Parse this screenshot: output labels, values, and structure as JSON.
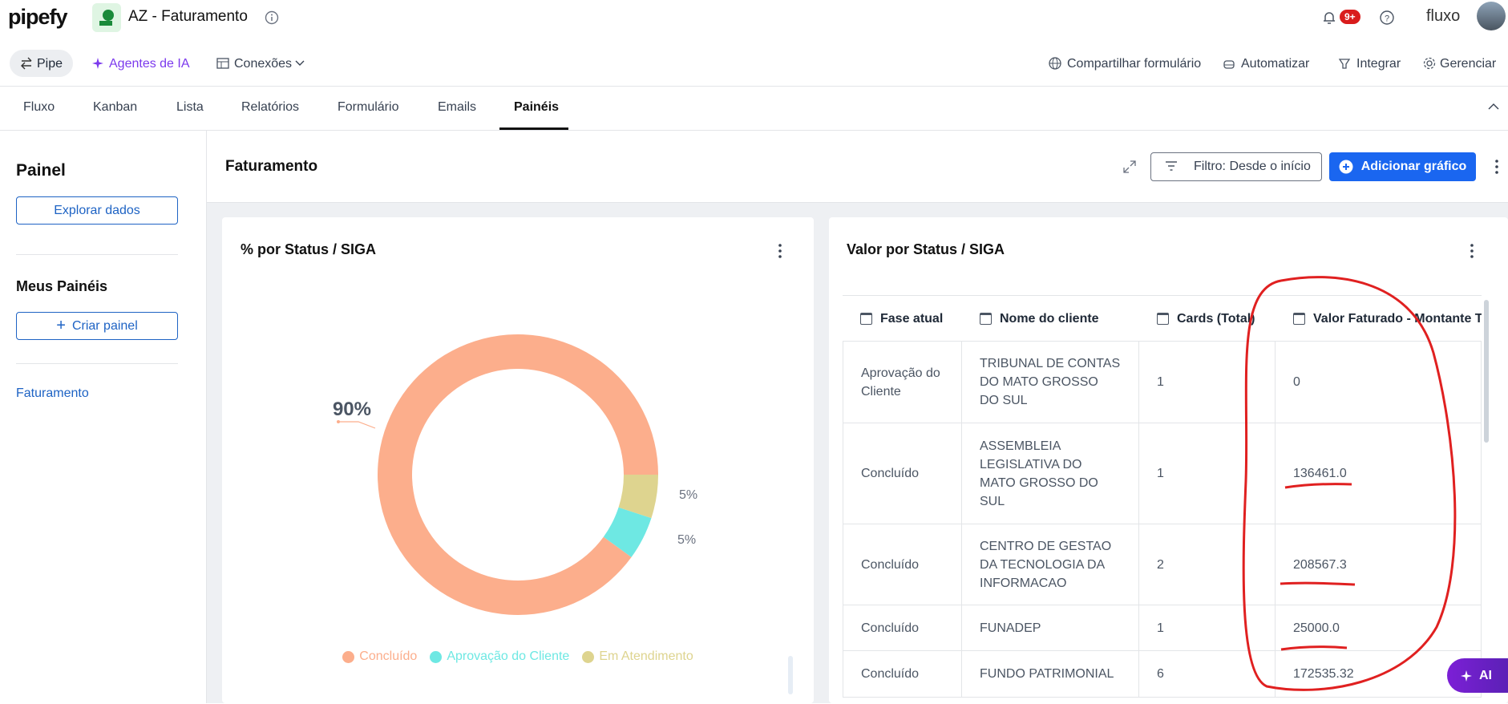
{
  "header": {
    "logo": "pipefy",
    "pipe_name": "AZ - Faturamento",
    "notifications": "9+",
    "brand": "fluxo"
  },
  "toolbar": {
    "pipe": "Pipe",
    "agents": "Agentes de IA",
    "connections": "Conexões",
    "share": "Compartilhar formulário",
    "automate": "Automatizar",
    "integrate": "Integrar",
    "manage": "Gerenciar"
  },
  "tabs": [
    "Fluxo",
    "Kanban",
    "Lista",
    "Relatórios",
    "Formulário",
    "Emails",
    "Painéis"
  ],
  "sidebar": {
    "title": "Painel",
    "explore": "Explorar dados",
    "my_panels": "Meus Painéis",
    "create": "Criar painel",
    "panels": [
      "Faturamento"
    ]
  },
  "dashboard": {
    "title": "Faturamento",
    "filter": "Filtro: Desde o início",
    "add_chart": "Adicionar gráfico"
  },
  "chart_data": {
    "type": "pie",
    "title": "% por Status / SIGA",
    "categories": [
      "Concluído",
      "Aprovação do Cliente",
      "Em Atendimento"
    ],
    "values": [
      90,
      5,
      5
    ],
    "value_labels": [
      "90%",
      "5%",
      "5%"
    ],
    "colors": [
      "#fcae8c",
      "#6ee8e3",
      "#ded48f"
    ]
  },
  "table": {
    "title": "Valor por Status / SIGA",
    "columns": [
      "Fase atual",
      "Nome do cliente",
      "Cards (Total)",
      "Valor Faturado - Montante T"
    ],
    "rows": [
      [
        "Aprovação do Cliente",
        "TRIBUNAL DE CONTAS DO MATO GROSSO DO SUL",
        1,
        0
      ],
      [
        "Concluído",
        "ASSEMBLEIA LEGISLATIVA DO MATO GROSSO DO SUL",
        1,
        "136461.0"
      ],
      [
        "Concluído",
        "CENTRO DE GESTAO DA TECNOLOGIA DA INFORMACAO",
        2,
        "208567.3"
      ],
      [
        "Concluído",
        "FUNADEP",
        1,
        "25000.0"
      ],
      [
        "Concluído",
        "FUNDO PATRIMONIAL",
        6,
        172535.32
      ]
    ]
  },
  "assistant": "AI"
}
